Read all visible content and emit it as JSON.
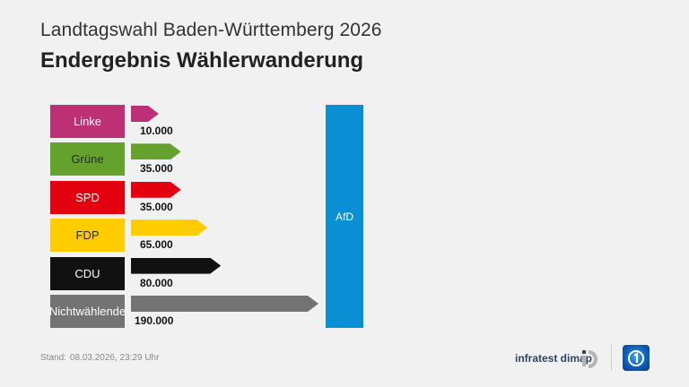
{
  "header": {
    "subtitle": "Landtagswahl Baden-Württemberg 2026",
    "title": "Endergebnis Wählerwanderung"
  },
  "target": {
    "label": "AfD",
    "color": "#0b8fd4"
  },
  "rows": [
    {
      "party": "Linke",
      "value_label": "10.000",
      "color": "#be3075",
      "text_color": "#ffffff"
    },
    {
      "party": "Grüne",
      "value_label": "35.000",
      "color": "#64a12d",
      "text_color": "#2b2b2b"
    },
    {
      "party": "SPD",
      "value_label": "35.000",
      "color": "#e3000f",
      "text_color": "#ffffff"
    },
    {
      "party": "FDP",
      "value_label": "65.000",
      "color": "#ffcc00",
      "text_color": "#2b2b2b"
    },
    {
      "party": "CDU",
      "value_label": "80.000",
      "color": "#111111",
      "text_color": "#ffffff"
    },
    {
      "party": "Nichtwählende",
      "value_label": "190.000",
      "color": "#737373",
      "text_color": "#ffffff"
    }
  ],
  "footer": {
    "stand_label": "Stand:",
    "stand_value": "08.03.2026, 23:29 Uhr",
    "source": "infratest dimap",
    "source_logo_icon": "infratest-dimap-logo-icon",
    "broadcaster_logo_icon": "ard-tagesschau-logo-icon"
  },
  "chart_data": {
    "type": "bar",
    "title": "Endergebnis Wählerwanderung",
    "subtitle": "Landtagswahl Baden-Württemberg 2026",
    "orientation": "horizontal",
    "target": "AfD",
    "categories": [
      "Linke",
      "Grüne",
      "SPD",
      "FDP",
      "CDU",
      "Nichtwählende"
    ],
    "values": [
      10000,
      35000,
      35000,
      65000,
      80000,
      190000
    ],
    "colors": [
      "#be3075",
      "#64a12d",
      "#e3000f",
      "#ffcc00",
      "#111111",
      "#737373"
    ],
    "xlabel": "",
    "ylabel": "",
    "grid": false,
    "legend": "none",
    "annotations": [
      "Stand: 08.03.2026, 23:29 Uhr"
    ]
  }
}
